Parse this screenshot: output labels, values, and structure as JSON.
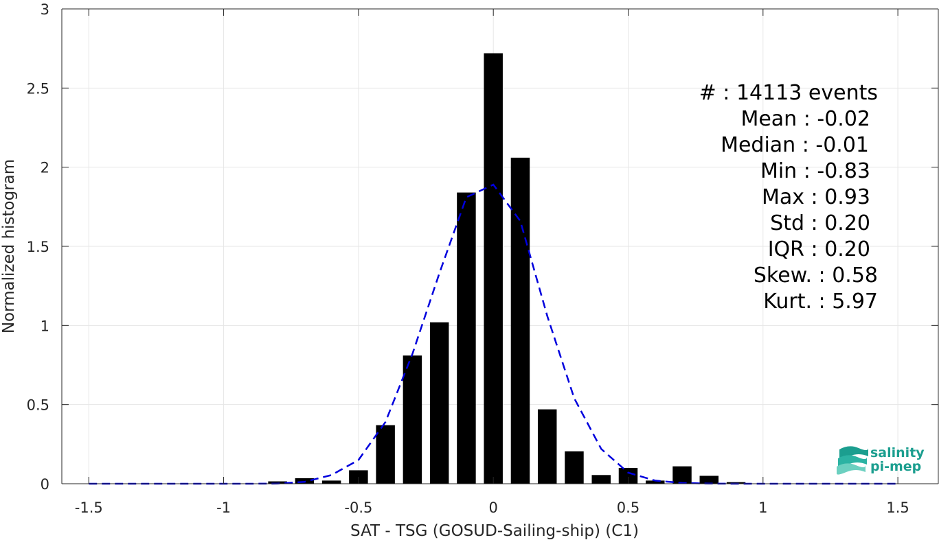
{
  "chart_data": {
    "type": "bar",
    "xlabel": "SAT - TSG (GOSUD-Sailing-ship) (C1)",
    "ylabel": "Normalized histogram",
    "xlim": [
      -1.6,
      1.65
    ],
    "ylim": [
      0,
      3
    ],
    "x_ticks": [
      -1.5,
      -1,
      -0.5,
      0,
      0.5,
      1,
      1.5
    ],
    "x_tick_labels": [
      "-1.5",
      "-1",
      "-0.5",
      "0",
      "0.5",
      "1",
      "1.5"
    ],
    "y_ticks": [
      0,
      0.5,
      1,
      1.5,
      2,
      2.5,
      3
    ],
    "y_tick_labels": [
      "0",
      "0.5",
      "1",
      "1.5",
      "2",
      "2.5",
      "3"
    ],
    "grid": true,
    "bar_width": 0.07,
    "bar_color": "#000000",
    "bars": {
      "x": [
        -0.8,
        -0.7,
        -0.6,
        -0.5,
        -0.4,
        -0.3,
        -0.2,
        -0.1,
        0.0,
        0.1,
        0.2,
        0.3,
        0.4,
        0.5,
        0.6,
        0.7,
        0.8,
        0.9
      ],
      "values": [
        0.015,
        0.035,
        0.02,
        0.085,
        0.37,
        0.81,
        1.02,
        1.84,
        2.72,
        2.06,
        0.47,
        0.205,
        0.055,
        0.1,
        0.02,
        0.11,
        0.05,
        0.01
      ]
    },
    "fit_curve": {
      "color": "#0000dd",
      "style": "dashed",
      "x": [
        -1.5,
        -1.4,
        -1.3,
        -1.2,
        -1.1,
        -1.0,
        -0.9,
        -0.8,
        -0.7,
        -0.6,
        -0.5,
        -0.4,
        -0.3,
        -0.2,
        -0.1,
        0.0,
        0.1,
        0.2,
        0.3,
        0.4,
        0.5,
        0.6,
        0.7,
        0.8,
        0.9,
        1.0,
        1.1,
        1.2,
        1.3,
        1.4,
        1.5
      ],
      "y": [
        0,
        0,
        0,
        0,
        0,
        0,
        0,
        0.001,
        0.012,
        0.055,
        0.15,
        0.39,
        0.82,
        1.33,
        1.81,
        1.89,
        1.66,
        1.06,
        0.54,
        0.22,
        0.07,
        0.02,
        0.005,
        0.001,
        0,
        0,
        0,
        0,
        0,
        0,
        0
      ]
    },
    "annotations": [
      "#  : 14113 events",
      "Mean : -0.02",
      "Median : -0.01",
      "Min : -0.83",
      "Max : 0.93",
      "Std : 0.20",
      "IQR : 0.20",
      "Skew. : 0.58",
      "Kurt. : 5.97"
    ]
  },
  "logo": {
    "line1": "salinity",
    "line2": "pi-mep",
    "color": "#1b9e8f"
  }
}
